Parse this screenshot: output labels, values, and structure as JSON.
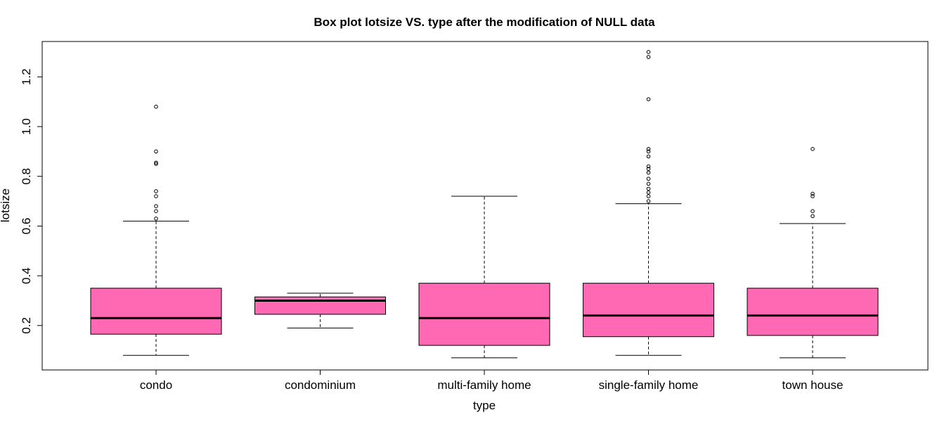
{
  "chart_data": {
    "type": "box",
    "title": "Box plot lotsize VS. type after the modification of NULL data",
    "xlabel": "type",
    "ylabel": "lotsize",
    "ylim": [
      0.03,
      1.33
    ],
    "y_ticks": [
      "0.2",
      "0.4",
      "0.6",
      "0.8",
      "1.0",
      "1.2"
    ],
    "y_tick_values": [
      0.2,
      0.4,
      0.6,
      0.8,
      1.0,
      1.2
    ],
    "fill_color": "#FF69B4",
    "categories": [
      "condo",
      "condominium",
      "multi-family home",
      "single-family home",
      "town house"
    ],
    "boxes": [
      {
        "category": "condo",
        "whisker_low": 0.08,
        "q1": 0.165,
        "median": 0.23,
        "q3": 0.35,
        "whisker_high": 0.62,
        "outliers": [
          0.63,
          0.66,
          0.68,
          0.72,
          0.74,
          0.85,
          0.855,
          0.9,
          1.08
        ]
      },
      {
        "category": "condominium",
        "whisker_low": 0.19,
        "q1": 0.245,
        "median": 0.3,
        "q3": 0.315,
        "whisker_high": 0.33,
        "outliers": []
      },
      {
        "category": "multi-family home",
        "whisker_low": 0.07,
        "q1": 0.12,
        "median": 0.23,
        "q3": 0.37,
        "whisker_high": 0.72,
        "outliers": []
      },
      {
        "category": "single-family home",
        "whisker_low": 0.08,
        "q1": 0.155,
        "median": 0.24,
        "q3": 0.37,
        "whisker_high": 0.69,
        "outliers": [
          0.7,
          0.72,
          0.735,
          0.75,
          0.77,
          0.79,
          0.815,
          0.83,
          0.84,
          0.88,
          0.9,
          0.91,
          1.11,
          1.28,
          1.3
        ]
      },
      {
        "category": "town house",
        "whisker_low": 0.07,
        "q1": 0.16,
        "median": 0.24,
        "q3": 0.35,
        "whisker_high": 0.61,
        "outliers": [
          0.64,
          0.66,
          0.72,
          0.73,
          0.91
        ]
      }
    ]
  }
}
